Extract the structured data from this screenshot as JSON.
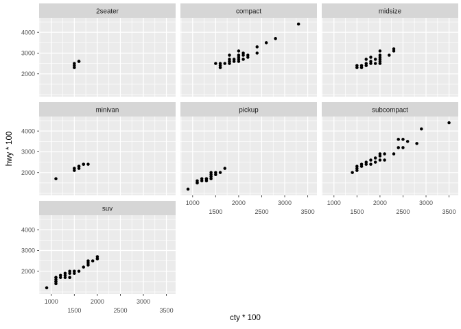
{
  "chart_data": {
    "type": "scatter",
    "faceted": true,
    "facet_variable": "class",
    "xlabel": "cty * 100",
    "ylabel": "hwy * 100",
    "x_ticks": [
      1000,
      1500,
      2000,
      2500,
      3000,
      3500
    ],
    "x_minor_ticks": [
      750,
      1250,
      1750,
      2250,
      2750,
      3250
    ],
    "y_ticks": [
      2000,
      3000,
      4000
    ],
    "y_minor_ticks": [
      1000,
      1500,
      2500,
      3500,
      4500
    ],
    "x_tick_stagger": {
      "row1": [
        1000,
        2000,
        3000
      ],
      "row2": [
        1500,
        2500,
        3500
      ]
    },
    "x_range": [
      735,
      3700
    ],
    "y_range": [
      900,
      4700
    ],
    "grid": true,
    "legend": "none",
    "style": {
      "panel_bg": "#EBEBEB",
      "strip_bg": "#D6D6D6",
      "grid_color": "#FFFFFF",
      "point_color": "#000000",
      "tick_label_color": "#4D4D4D",
      "strip_text_color": "#1A1A1A",
      "tick_mark_color": "#333333",
      "axis_title_color": "#000000"
    },
    "facets": [
      {
        "label": "2seater",
        "points": [
          [
            1500,
            2300
          ],
          [
            1500,
            2400
          ],
          [
            1500,
            2500
          ],
          [
            1600,
            2600
          ],
          [
            1600,
            2600
          ]
        ]
      },
      {
        "label": "compact",
        "points": [
          [
            1500,
            2500
          ],
          [
            1600,
            2300
          ],
          [
            1600,
            2400
          ],
          [
            1600,
            2500
          ],
          [
            1700,
            2500
          ],
          [
            1800,
            2500
          ],
          [
            1800,
            2600
          ],
          [
            1800,
            2600
          ],
          [
            1800,
            2700
          ],
          [
            1800,
            2900
          ],
          [
            1900,
            2600
          ],
          [
            1900,
            2700
          ],
          [
            2000,
            2600
          ],
          [
            2000,
            2700
          ],
          [
            2000,
            2800
          ],
          [
            2000,
            2900
          ],
          [
            2000,
            3100
          ],
          [
            2100,
            2700
          ],
          [
            2100,
            2900
          ],
          [
            2100,
            3000
          ],
          [
            2200,
            2800
          ],
          [
            2200,
            2900
          ],
          [
            2400,
            3000
          ],
          [
            2400,
            3300
          ],
          [
            2600,
            3500
          ],
          [
            2800,
            3700
          ],
          [
            3300,
            4400
          ]
        ]
      },
      {
        "label": "midsize",
        "points": [
          [
            1500,
            2300
          ],
          [
            1500,
            2400
          ],
          [
            1600,
            2300
          ],
          [
            1600,
            2400
          ],
          [
            1700,
            2400
          ],
          [
            1700,
            2500
          ],
          [
            1700,
            2700
          ],
          [
            1800,
            2500
          ],
          [
            1800,
            2600
          ],
          [
            1800,
            2800
          ],
          [
            1900,
            2500
          ],
          [
            1900,
            2700
          ],
          [
            2000,
            2500
          ],
          [
            2000,
            2600
          ],
          [
            2000,
            2700
          ],
          [
            2000,
            2800
          ],
          [
            2000,
            2900
          ],
          [
            2000,
            3100
          ],
          [
            2200,
            2900
          ],
          [
            2300,
            3100
          ],
          [
            2300,
            3200
          ]
        ]
      },
      {
        "label": "minivan",
        "points": [
          [
            1100,
            1700
          ],
          [
            1500,
            2100
          ],
          [
            1500,
            2200
          ],
          [
            1500,
            2200
          ],
          [
            1600,
            2200
          ],
          [
            1600,
            2300
          ],
          [
            1600,
            2300
          ],
          [
            1700,
            2400
          ],
          [
            1700,
            2400
          ],
          [
            1800,
            2400
          ]
        ]
      },
      {
        "label": "pickup",
        "points": [
          [
            900,
            1200
          ],
          [
            1100,
            1500
          ],
          [
            1100,
            1500
          ],
          [
            1100,
            1600
          ],
          [
            1200,
            1600
          ],
          [
            1200,
            1700
          ],
          [
            1300,
            1600
          ],
          [
            1300,
            1700
          ],
          [
            1300,
            1700
          ],
          [
            1400,
            1700
          ],
          [
            1400,
            1800
          ],
          [
            1400,
            1900
          ],
          [
            1400,
            2000
          ],
          [
            1500,
            1900
          ],
          [
            1500,
            2000
          ],
          [
            1600,
            2000
          ],
          [
            1700,
            2200
          ]
        ]
      },
      {
        "label": "subcompact",
        "points": [
          [
            1400,
            2000
          ],
          [
            1500,
            2100
          ],
          [
            1500,
            2200
          ],
          [
            1500,
            2300
          ],
          [
            1600,
            2300
          ],
          [
            1600,
            2400
          ],
          [
            1700,
            2400
          ],
          [
            1700,
            2500
          ],
          [
            1800,
            2400
          ],
          [
            1800,
            2600
          ],
          [
            1900,
            2500
          ],
          [
            1900,
            2700
          ],
          [
            2000,
            2600
          ],
          [
            2000,
            2800
          ],
          [
            2000,
            2900
          ],
          [
            2100,
            2600
          ],
          [
            2100,
            2900
          ],
          [
            2300,
            2900
          ],
          [
            2400,
            3200
          ],
          [
            2400,
            3600
          ],
          [
            2500,
            3200
          ],
          [
            2500,
            3600
          ],
          [
            2600,
            3500
          ],
          [
            2800,
            3400
          ],
          [
            2900,
            4100
          ],
          [
            3500,
            4400
          ]
        ]
      },
      {
        "label": "suv",
        "points": [
          [
            900,
            1200
          ],
          [
            1100,
            1400
          ],
          [
            1100,
            1500
          ],
          [
            1100,
            1500
          ],
          [
            1100,
            1600
          ],
          [
            1100,
            1700
          ],
          [
            1100,
            1700
          ],
          [
            1200,
            1700
          ],
          [
            1200,
            1800
          ],
          [
            1300,
            1700
          ],
          [
            1300,
            1800
          ],
          [
            1300,
            1900
          ],
          [
            1400,
            1700
          ],
          [
            1400,
            1700
          ],
          [
            1400,
            1900
          ],
          [
            1400,
            2000
          ],
          [
            1500,
            1900
          ],
          [
            1500,
            2000
          ],
          [
            1500,
            2000
          ],
          [
            1600,
            2000
          ],
          [
            1700,
            2200
          ],
          [
            1800,
            2300
          ],
          [
            1800,
            2400
          ],
          [
            1800,
            2500
          ],
          [
            1900,
            2500
          ],
          [
            2000,
            2600
          ],
          [
            2000,
            2600
          ],
          [
            2000,
            2700
          ]
        ]
      }
    ]
  }
}
